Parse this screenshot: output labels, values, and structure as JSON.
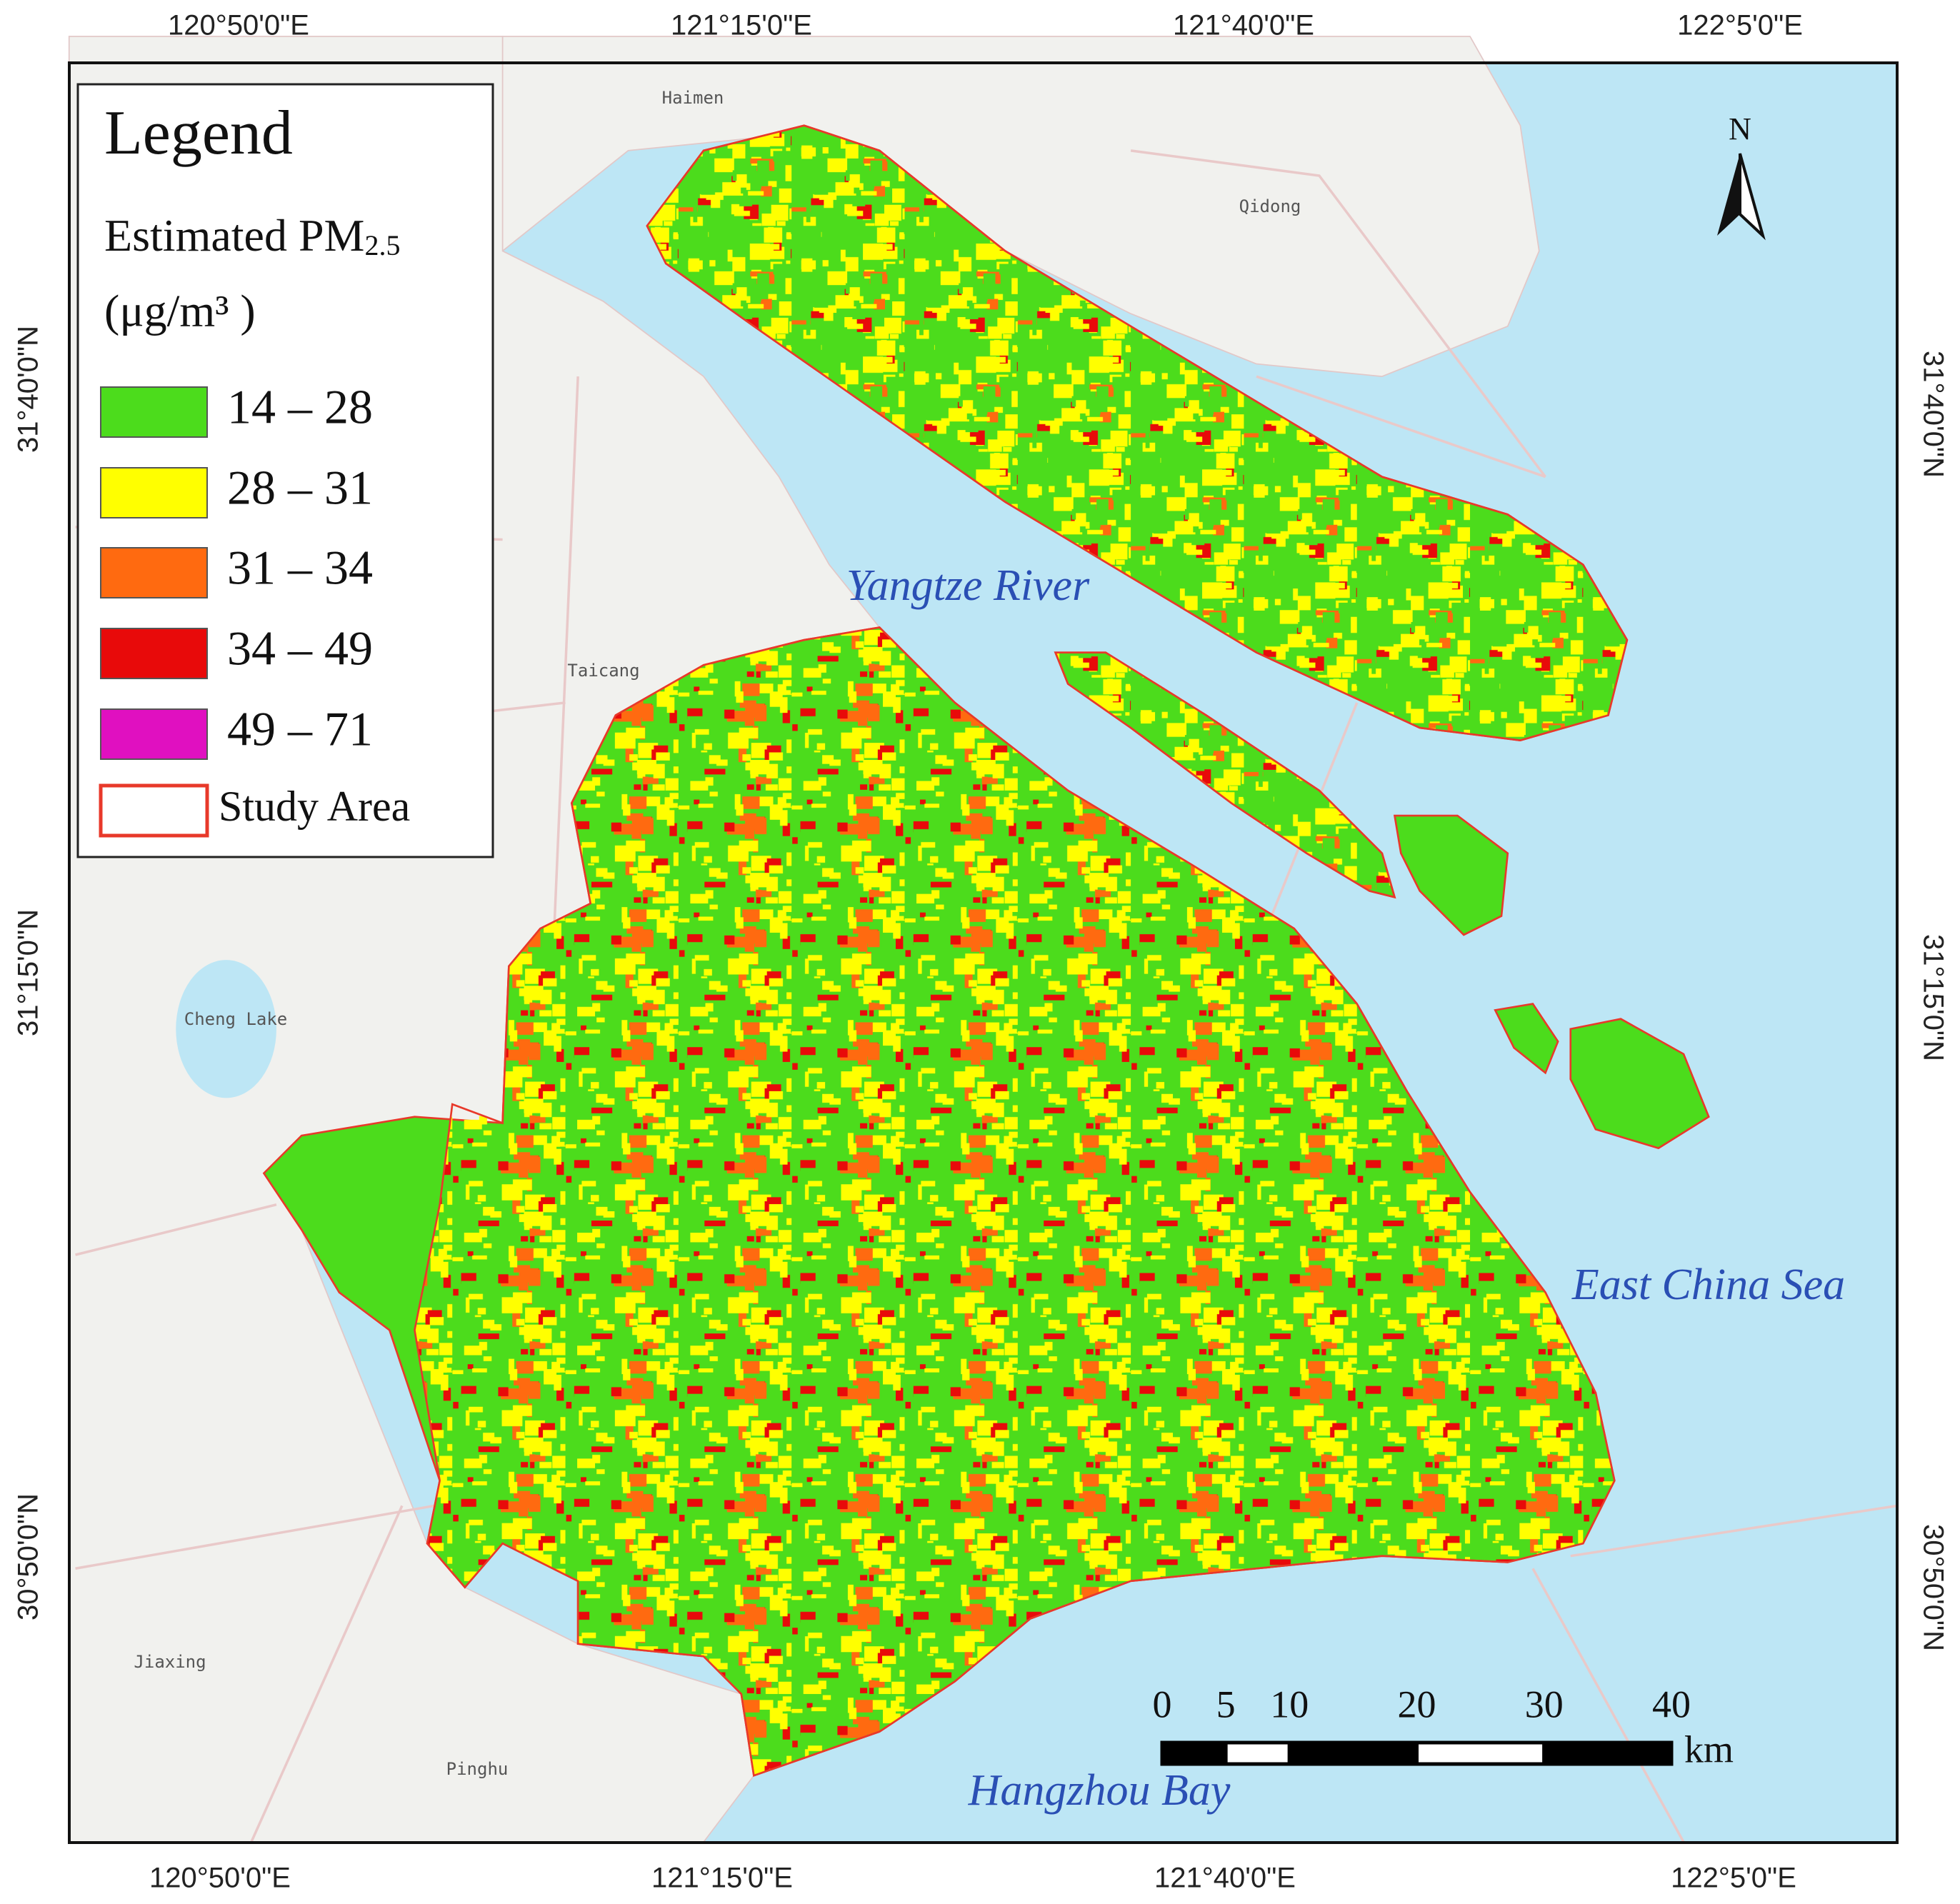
{
  "map": {
    "top_labels": [
      "120°50'0\"E",
      "121°15'0\"E",
      "121°40'0\"E",
      "122°5'0\"E"
    ],
    "bottom_labels": [
      "120°50'0\"E",
      "121°15'0\"E",
      "121°40'0\"E",
      "122°5'0\"E"
    ],
    "left_labels": [
      "31°40'0\"N",
      "31°15'0\"N",
      "30°50'0\"N"
    ],
    "right_labels": [
      "31°40'0\"N",
      "31°15'0\"N",
      "30°50'0\"N"
    ]
  },
  "legend": {
    "title": "Legend",
    "subtitle": "Estimated PM",
    "subscript": "2.5",
    "unit": "(μg/m³ )",
    "items": [
      {
        "label": "14 – 28",
        "color": "#4cdc1c"
      },
      {
        "label": "28 – 31",
        "color": "#ffff00"
      },
      {
        "label": "31 – 34",
        "color": "#ff6a10"
      },
      {
        "label": "34 – 49",
        "color": "#e80a0a"
      },
      {
        "label": "49 – 71",
        "color": "#e010c0"
      },
      {
        "label": "Study Area",
        "outline": "#e8392a"
      }
    ]
  },
  "places": [
    "Yangtze River",
    "East China Sea",
    "Hangzhou Bay"
  ],
  "cities": [
    "Haimen",
    "Qidong",
    "Taicang",
    "Cheng Lake",
    "Jiaxing",
    "Pinghu"
  ],
  "scale_bar": {
    "ticks": [
      0,
      5,
      10,
      20,
      30,
      40
    ],
    "unit": "km"
  },
  "north": "N"
}
